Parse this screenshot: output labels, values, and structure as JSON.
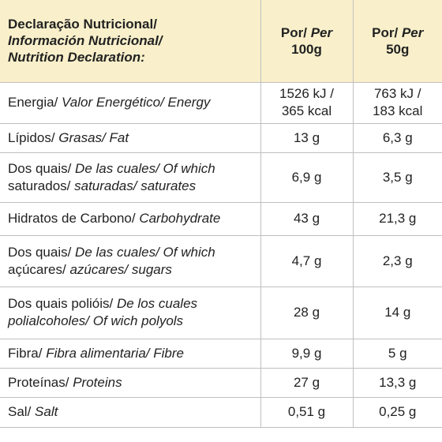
{
  "header": [
    [
      [
        "Declaração Nutricional/"
      ],
      [
        {
          "text": "Información Nutricional/",
          "italic": true
        }
      ],
      [
        {
          "text": "Nutrition Declaration:",
          "italic": true
        }
      ]
    ],
    [
      [
        "Por/ ",
        {
          "text": "Per",
          "italic": true
        }
      ],
      [
        "100g"
      ]
    ],
    [
      [
        "Por/ ",
        {
          "text": "Per",
          "italic": true
        }
      ],
      [
        "50g"
      ]
    ]
  ],
  "rows": [
    [
      [
        [
          "Energia/ ",
          {
            "text": "Valor Energético/ Energy",
            "italic": true
          }
        ]
      ],
      [
        [
          "1526 kJ /"
        ],
        [
          "365 kcal"
        ]
      ],
      [
        [
          "763 kJ /"
        ],
        [
          "183 kcal"
        ]
      ]
    ],
    [
      [
        [
          "Lípidos/ ",
          {
            "text": "Grasas/ Fat",
            "italic": true
          }
        ]
      ],
      [
        [
          "13 g"
        ]
      ],
      [
        [
          "6,3 g"
        ]
      ]
    ],
    [
      [
        [
          "Dos quais/ ",
          {
            "text": "De las cuales/ Of which",
            "italic": true
          }
        ],
        [
          "saturados/ ",
          {
            "text": "saturadas/ saturates",
            "italic": true
          }
        ]
      ],
      [
        [
          "6,9 g"
        ]
      ],
      [
        [
          "3,5 g"
        ]
      ]
    ],
    [
      [
        [
          "Hidratos de Carbono/ ",
          {
            "text": "Carbohydrate",
            "italic": true
          }
        ]
      ],
      [
        [
          "43 g"
        ]
      ],
      [
        [
          "21,3 g"
        ]
      ]
    ],
    [
      [
        [
          "Dos quais/ ",
          {
            "text": "De las cuales/ Of which",
            "italic": true
          }
        ],
        [
          "açúcares/ ",
          {
            "text": "azúcares/ sugars",
            "italic": true
          }
        ]
      ],
      [
        [
          "4,7 g"
        ]
      ],
      [
        [
          "2,3 g"
        ]
      ]
    ],
    [
      [
        [
          "Dos quais polióis/ ",
          {
            "text": "De los cuales",
            "italic": true
          }
        ],
        [
          {
            "text": "polialcoholes/ Of wich polyols",
            "italic": true
          }
        ]
      ],
      [
        [
          "28 g"
        ]
      ],
      [
        [
          "14 g"
        ]
      ]
    ],
    [
      [
        [
          "Fibra/ ",
          {
            "text": "Fibra alimentaria/ Fibre",
            "italic": true
          }
        ]
      ],
      [
        [
          "9,9 g"
        ]
      ],
      [
        [
          "5 g"
        ]
      ]
    ],
    [
      [
        [
          "Proteínas/ ",
          {
            "text": "Proteins",
            "italic": true
          }
        ]
      ],
      [
        [
          "27 g"
        ]
      ],
      [
        [
          "13,3 g"
        ]
      ]
    ],
    [
      [
        [
          "Sal/ ",
          {
            "text": "Salt",
            "italic": true
          }
        ]
      ],
      [
        [
          "0,51 g"
        ]
      ],
      [
        [
          "0,25 g"
        ]
      ]
    ]
  ]
}
